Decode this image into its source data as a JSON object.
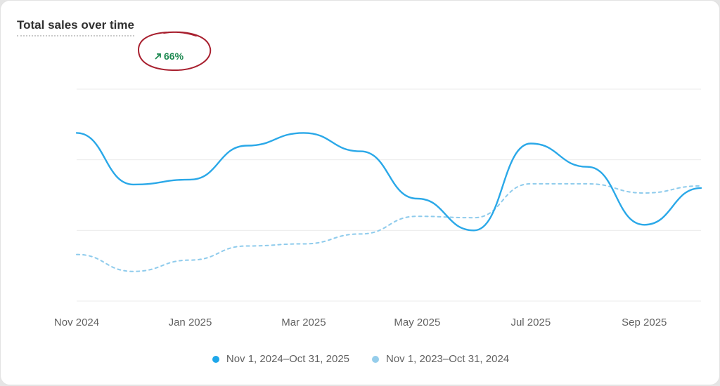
{
  "card": {
    "title": "Total sales over time",
    "trend": {
      "value": "66%",
      "direction": "up",
      "icon": "arrow-up-right-icon",
      "color": "#1f8a52"
    },
    "annotation_color": "#a8202f"
  },
  "chart_data": {
    "type": "line",
    "title": "Total sales over time",
    "xlabel": "",
    "ylabel": "",
    "x_tick_labels": [
      "Nov 2024",
      "Jan 2025",
      "Mar 2025",
      "May 2025",
      "Jul 2025",
      "Sep 2025"
    ],
    "y_range": [
      0,
      3
    ],
    "grid": true,
    "legend_position": "bottom",
    "series": [
      {
        "name": "Nov 1, 2024–Oct 31, 2025",
        "color": "#2aa8e8",
        "style": "solid",
        "points": [
          [
            0,
            2.38
          ],
          [
            0.5,
            1.65
          ],
          [
            1.0,
            1.72
          ],
          [
            1.5,
            2.2
          ],
          [
            2.0,
            2.38
          ],
          [
            2.5,
            2.12
          ],
          [
            3.0,
            1.45
          ],
          [
            3.5,
            1.0
          ],
          [
            4.0,
            2.23
          ],
          [
            4.5,
            1.9
          ],
          [
            5.0,
            1.08
          ],
          [
            5.5,
            1.6
          ]
        ]
      },
      {
        "name": "Nov 1, 2023–Oct 31, 2024",
        "color": "#8ecbec",
        "style": "dashed",
        "points": [
          [
            0,
            0.66
          ],
          [
            0.5,
            0.42
          ],
          [
            1.0,
            0.58
          ],
          [
            1.5,
            0.78
          ],
          [
            2.0,
            0.81
          ],
          [
            2.5,
            0.95
          ],
          [
            3.0,
            1.2
          ],
          [
            3.5,
            1.18
          ],
          [
            4.0,
            1.66
          ],
          [
            4.5,
            1.66
          ],
          [
            5.0,
            1.53
          ],
          [
            5.5,
            1.63
          ]
        ]
      }
    ]
  }
}
